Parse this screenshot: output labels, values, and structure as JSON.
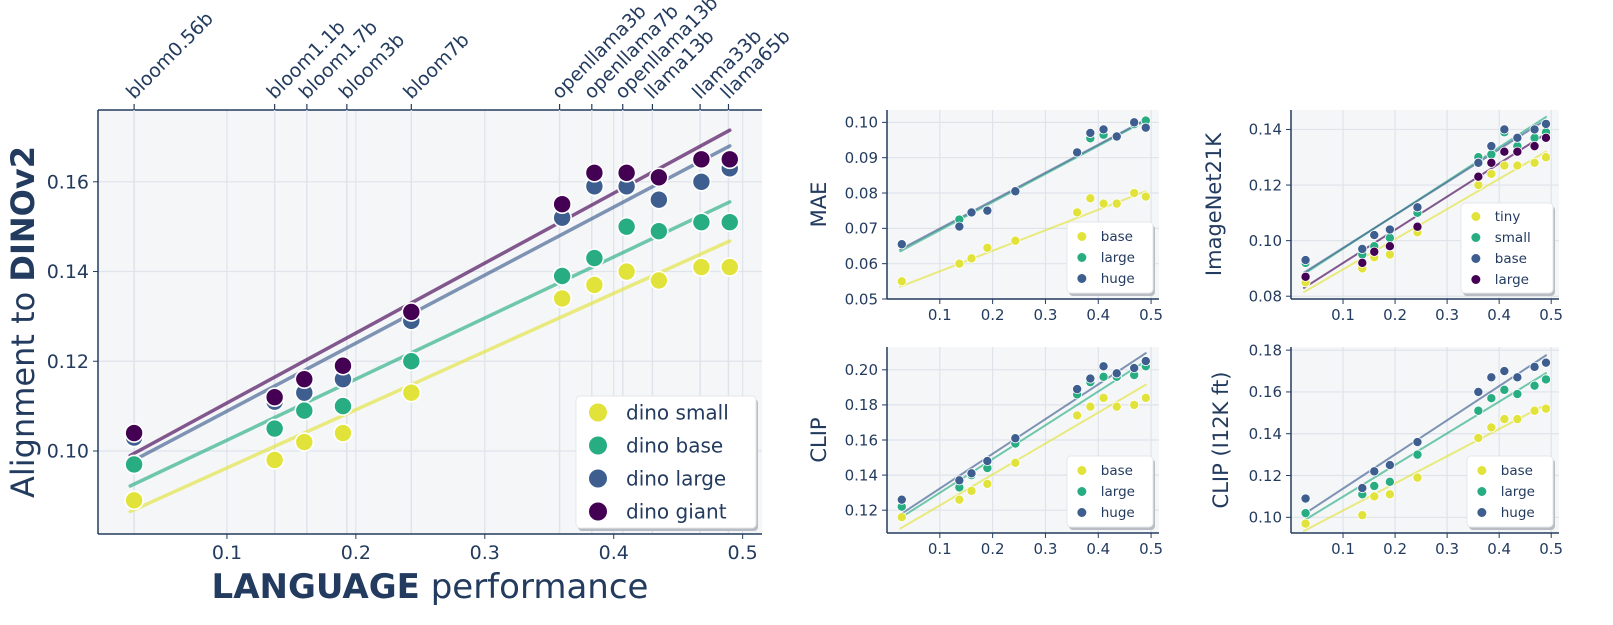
{
  "colors": {
    "small": "#e2e33a",
    "base": "#27ad81",
    "large": "#3d5e8f",
    "giant": "#440154",
    "mae_base": "#e2e33a",
    "mae_large": "#27ad81",
    "mae_huge": "#3d5e8f",
    "tiny": "#e2e33a",
    "text": "#233b5e",
    "plot_bg": "#f5f6f8",
    "grid": "#dfe3ea"
  },
  "chart_data": [
    {
      "id": "main",
      "type": "scatter",
      "title": "",
      "xlabel": "LANGUAGE performance",
      "xlabel_strong": "LANGUAGE",
      "xlabel_rest": " performance",
      "ylabel": "Alignment to DINOv2",
      "ylabel_pre": "Alignment to ",
      "ylabel_strong": "DINOv2",
      "xlim": [
        0.0,
        0.515
      ],
      "ylim": [
        0.0815,
        0.176
      ],
      "xticks": [
        0.1,
        0.2,
        0.3,
        0.4,
        0.5
      ],
      "xtick_labels": [
        "0.1",
        "0.2",
        "0.3",
        "0.4",
        "0.5"
      ],
      "yticks": [
        0.1,
        0.12,
        0.14,
        0.16
      ],
      "ytick_labels": [
        "0.10",
        "0.12",
        "0.14",
        "0.16"
      ],
      "x": [
        0.028,
        0.137,
        0.16,
        0.19,
        0.243,
        0.36,
        0.385,
        0.41,
        0.435,
        0.468,
        0.49
      ],
      "top_axis": {
        "labels": [
          "bloom0.56b",
          "bloom1.1b",
          "bloom1.7b",
          "bloom3b",
          "bloom7b",
          "openllama3b",
          "openllama7b",
          "openllama13b",
          "llama13b",
          "llama33b",
          "llama65b"
        ],
        "x": [
          0.028,
          0.137,
          0.162,
          0.193,
          0.243,
          0.358,
          0.383,
          0.407,
          0.43,
          0.467,
          0.489
        ]
      },
      "legend": "lower-right",
      "series": [
        {
          "name": "dino small",
          "color_key": "small",
          "values": [
            0.089,
            0.098,
            0.102,
            0.104,
            0.113,
            0.134,
            0.137,
            0.14,
            0.138,
            0.141,
            0.141
          ],
          "fit": [
            [
              0.025,
              0.0865
            ],
            [
              0.49,
              0.1468
            ]
          ]
        },
        {
          "name": "dino base",
          "color_key": "base",
          "values": [
            0.097,
            0.105,
            0.109,
            0.11,
            0.12,
            0.139,
            0.143,
            0.15,
            0.149,
            0.151,
            0.151
          ],
          "fit": [
            [
              0.025,
              0.0922
            ],
            [
              0.49,
              0.1555
            ]
          ]
        },
        {
          "name": "dino large",
          "color_key": "large",
          "values": [
            0.103,
            0.111,
            0.113,
            0.116,
            0.129,
            0.152,
            0.159,
            0.159,
            0.156,
            0.16,
            0.163
          ],
          "fit": [
            [
              0.025,
              0.0975
            ],
            [
              0.49,
              0.168
            ]
          ]
        },
        {
          "name": "dino giant",
          "color_key": "giant",
          "values": [
            0.104,
            0.112,
            0.116,
            0.119,
            0.131,
            0.155,
            0.162,
            0.162,
            0.161,
            0.165,
            0.165
          ],
          "fit": [
            [
              0.025,
              0.099
            ],
            [
              0.49,
              0.1715
            ]
          ]
        }
      ]
    },
    {
      "id": "mae",
      "type": "scatter",
      "ylabel": "MAE",
      "xlim": [
        0.0,
        0.515
      ],
      "ylim": [
        0.05,
        0.1035
      ],
      "xticks": [
        0.1,
        0.2,
        0.3,
        0.4,
        0.5
      ],
      "xtick_labels": [
        "0.1",
        "0.2",
        "0.3",
        "0.4",
        "0.5"
      ],
      "yticks": [
        0.05,
        0.06,
        0.07,
        0.08,
        0.09,
        0.1
      ],
      "ytick_labels": [
        "0.05",
        "0.06",
        "0.07",
        "0.08",
        "0.09",
        "0.10"
      ],
      "x": [
        0.028,
        0.137,
        0.16,
        0.19,
        0.243,
        0.36,
        0.385,
        0.41,
        0.435,
        0.468,
        0.49
      ],
      "legend": "lower-right",
      "series": [
        {
          "name": "base",
          "color_key": "mae_base",
          "values": [
            0.055,
            0.06,
            0.0615,
            0.0645,
            0.0665,
            0.0745,
            0.0785,
            0.077,
            0.077,
            0.08,
            0.079
          ],
          "fit": [
            [
              0.025,
              0.0535
            ],
            [
              0.49,
              0.0805
            ]
          ]
        },
        {
          "name": "large",
          "color_key": "mae_large",
          "values": [
            0.0655,
            0.0725,
            0.0745,
            0.075,
            0.0805,
            0.0915,
            0.0955,
            0.0965,
            0.096,
            0.0995,
            0.1005
          ],
          "fit": [
            [
              0.025,
              0.0635
            ],
            [
              0.49,
              0.1005
            ]
          ]
        },
        {
          "name": "huge",
          "color_key": "mae_huge",
          "values": [
            0.0655,
            0.0705,
            0.0745,
            0.075,
            0.0805,
            0.0915,
            0.097,
            0.098,
            0.096,
            0.1,
            0.0985
          ],
          "fit": [
            [
              0.025,
              0.064
            ],
            [
              0.49,
              0.1008
            ]
          ]
        }
      ]
    },
    {
      "id": "imagenet21k",
      "type": "scatter",
      "ylabel": "ImageNet21K",
      "xlim": [
        0.0,
        0.515
      ],
      "ylim": [
        0.079,
        0.147
      ],
      "xticks": [
        0.1,
        0.2,
        0.3,
        0.4,
        0.5
      ],
      "xtick_labels": [
        "0.1",
        "0.2",
        "0.3",
        "0.4",
        "0.5"
      ],
      "yticks": [
        0.08,
        0.1,
        0.12,
        0.14
      ],
      "ytick_labels": [
        "0.08",
        "0.10",
        "0.12",
        "0.14"
      ],
      "x": [
        0.028,
        0.137,
        0.16,
        0.19,
        0.243,
        0.36,
        0.385,
        0.41,
        0.435,
        0.468,
        0.49
      ],
      "legend": "lower-right",
      "series": [
        {
          "name": "tiny",
          "color_key": "tiny",
          "values": [
            0.085,
            0.09,
            0.094,
            0.095,
            0.103,
            0.12,
            0.124,
            0.127,
            0.127,
            0.128,
            0.13
          ],
          "fit": [
            [
              0.025,
              0.0815
            ],
            [
              0.49,
              0.132
            ]
          ]
        },
        {
          "name": "small",
          "color_key": "base",
          "values": [
            0.092,
            0.095,
            0.098,
            0.101,
            0.11,
            0.13,
            0.131,
            0.139,
            0.134,
            0.137,
            0.139
          ],
          "fit": [
            [
              0.025,
              0.088
            ],
            [
              0.49,
              0.1445
            ]
          ]
        },
        {
          "name": "base",
          "color_key": "large",
          "values": [
            0.093,
            0.097,
            0.102,
            0.104,
            0.112,
            0.128,
            0.134,
            0.14,
            0.137,
            0.14,
            0.142
          ],
          "fit": [
            [
              0.025,
              0.0885
            ],
            [
              0.49,
              0.1435
            ]
          ]
        },
        {
          "name": "large",
          "color_key": "giant",
          "values": [
            0.087,
            0.092,
            0.096,
            0.098,
            0.105,
            0.123,
            0.128,
            0.132,
            0.132,
            0.134,
            0.137
          ],
          "fit": [
            [
              0.025,
              0.083
            ],
            [
              0.49,
              0.1385
            ]
          ]
        }
      ]
    },
    {
      "id": "clip",
      "type": "scatter",
      "ylabel": "CLIP",
      "xlim": [
        0.0,
        0.515
      ],
      "ylim": [
        0.107,
        0.213
      ],
      "xticks": [
        0.1,
        0.2,
        0.3,
        0.4,
        0.5
      ],
      "xtick_labels": [
        "0.1",
        "0.2",
        "0.3",
        "0.4",
        "0.5"
      ],
      "yticks": [
        0.12,
        0.14,
        0.16,
        0.18,
        0.2
      ],
      "ytick_labels": [
        "0.12",
        "0.14",
        "0.16",
        "0.18",
        "0.20"
      ],
      "x": [
        0.028,
        0.137,
        0.16,
        0.19,
        0.243,
        0.36,
        0.385,
        0.41,
        0.435,
        0.468,
        0.49
      ],
      "legend": "lower-right",
      "series": [
        {
          "name": "base",
          "color_key": "mae_base",
          "values": [
            0.116,
            0.126,
            0.131,
            0.135,
            0.147,
            0.174,
            0.179,
            0.184,
            0.179,
            0.18,
            0.184
          ],
          "fit": [
            [
              0.025,
              0.1095
            ],
            [
              0.49,
              0.1915
            ]
          ]
        },
        {
          "name": "large",
          "color_key": "mae_large",
          "values": [
            0.122,
            0.133,
            0.14,
            0.144,
            0.158,
            0.186,
            0.193,
            0.196,
            0.196,
            0.197,
            0.202
          ],
          "fit": [
            [
              0.025,
              0.1155
            ],
            [
              0.49,
              0.205
            ]
          ]
        },
        {
          "name": "huge",
          "color_key": "mae_huge",
          "values": [
            0.126,
            0.137,
            0.141,
            0.148,
            0.161,
            0.189,
            0.195,
            0.202,
            0.198,
            0.201,
            0.205
          ],
          "fit": [
            [
              0.025,
              0.1175
            ],
            [
              0.49,
              0.2095
            ]
          ]
        }
      ]
    },
    {
      "id": "clip_i12k",
      "type": "scatter",
      "ylabel": "CLIP (I12K ft)",
      "xlim": [
        0.0,
        0.515
      ],
      "ylim": [
        0.0925,
        0.1815
      ],
      "xticks": [
        0.1,
        0.2,
        0.3,
        0.4,
        0.5
      ],
      "xtick_labels": [
        "0.1",
        "0.2",
        "0.3",
        "0.4",
        "0.5"
      ],
      "yticks": [
        0.1,
        0.12,
        0.14,
        0.16,
        0.18
      ],
      "ytick_labels": [
        "0.10",
        "0.12",
        "0.14",
        "0.16",
        "0.18"
      ],
      "x": [
        0.028,
        0.137,
        0.16,
        0.19,
        0.243,
        0.36,
        0.385,
        0.41,
        0.435,
        0.468,
        0.49
      ],
      "legend": "lower-right",
      "series": [
        {
          "name": "base",
          "color_key": "mae_base",
          "values": [
            0.097,
            0.101,
            0.11,
            0.111,
            0.119,
            0.138,
            0.143,
            0.147,
            0.147,
            0.151,
            0.152
          ],
          "fit": [
            [
              0.025,
              0.0935
            ],
            [
              0.49,
              0.154
            ]
          ]
        },
        {
          "name": "large",
          "color_key": "mae_large",
          "values": [
            0.102,
            0.111,
            0.115,
            0.117,
            0.13,
            0.151,
            0.157,
            0.161,
            0.159,
            0.163,
            0.166
          ],
          "fit": [
            [
              0.025,
              0.0985
            ],
            [
              0.49,
              0.169
            ]
          ]
        },
        {
          "name": "huge",
          "color_key": "mae_huge",
          "values": [
            0.109,
            0.114,
            0.122,
            0.125,
            0.136,
            0.16,
            0.167,
            0.17,
            0.167,
            0.172,
            0.174
          ],
          "fit": [
            [
              0.025,
              0.1015
            ],
            [
              0.49,
              0.1775
            ]
          ]
        }
      ]
    }
  ]
}
